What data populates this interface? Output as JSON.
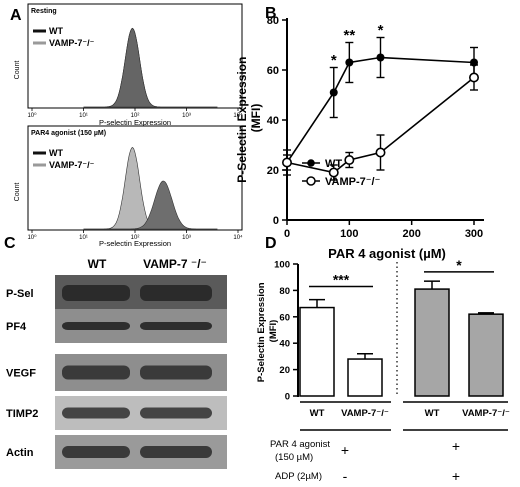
{
  "figure": {
    "panel_labels": [
      "A",
      "B",
      "C",
      "D"
    ]
  },
  "chart_data": [
    {
      "panel": "A",
      "type": "area",
      "subpanels": [
        {
          "title": "Resting",
          "ylabel": "Count",
          "xlabel": "P-selectin Expression",
          "x_tick_labels": [
            "10⁰",
            "10¹",
            "10²",
            "10³",
            "10⁴"
          ],
          "legend": [
            {
              "label": "WT",
              "color": "#111111"
            },
            {
              "label": "VAMP-7⁻/⁻",
              "color": "#9a9a9a"
            }
          ],
          "series": [
            {
              "name": "WT",
              "center_decade": 1.95,
              "width": 0.14,
              "peak": 0.82
            },
            {
              "name": "VAMP-7⁻/⁻",
              "center_decade": 1.95,
              "width": 0.14,
              "peak": 0.82
            }
          ]
        },
        {
          "title": "PAR4 agonist (150 µM)",
          "ylabel": "Count",
          "xlabel": "P-selectin Expression",
          "x_tick_labels": [
            "10⁰",
            "10¹",
            "10²",
            "10³",
            "10⁴"
          ],
          "legend": [
            {
              "label": "WT",
              "color": "#111111"
            },
            {
              "label": "VAMP-7⁻/⁻",
              "color": "#9a9a9a"
            }
          ],
          "series": [
            {
              "name": "WT",
              "center_decade": 2.55,
              "width": 0.17,
              "peak": 0.5
            },
            {
              "name": "VAMP-7⁻/⁻",
              "center_decade": 1.95,
              "width": 0.14,
              "peak": 0.85
            }
          ]
        }
      ]
    },
    {
      "panel": "B",
      "type": "line",
      "xlabel": "PAR 4 agonist (µM)",
      "ylabel": "P-Selectin Expression\n(MFI)",
      "xlim": [
        0,
        300
      ],
      "ylim": [
        0,
        80
      ],
      "x_ticks": [
        0,
        100,
        200,
        300
      ],
      "y_ticks": [
        0,
        20,
        40,
        60,
        80
      ],
      "series": [
        {
          "name": "WT",
          "marker": "filled",
          "x": [
            0,
            75,
            100,
            150,
            300
          ],
          "y": [
            23,
            51,
            63,
            65,
            63
          ],
          "err": [
            5,
            10,
            8,
            8,
            6
          ]
        },
        {
          "name": "VAMP-7⁻/⁻",
          "marker": "open",
          "x": [
            0,
            75,
            100,
            150,
            300
          ],
          "y": [
            23,
            19,
            24,
            27,
            57
          ],
          "err": [
            3,
            3,
            3,
            7,
            5
          ]
        }
      ],
      "annotations": [
        {
          "x": 75,
          "y": 62,
          "text": "*"
        },
        {
          "x": 100,
          "y": 72,
          "text": "**"
        },
        {
          "x": 150,
          "y": 74,
          "text": "*"
        }
      ],
      "legend_position": "bottom-left"
    },
    {
      "panel": "C",
      "type": "table",
      "columns": [
        "WT",
        "VAMP-7 ⁻/⁻"
      ],
      "rows": [
        "P-Sel",
        "PF4",
        "VEGF",
        "TIMP2",
        "Actin"
      ]
    },
    {
      "panel": "D",
      "type": "bar",
      "ylabel": "P-Selectin Expression\n(MFI)",
      "ylim": [
        0,
        100
      ],
      "y_ticks": [
        0,
        20,
        40,
        60,
        80,
        100
      ],
      "categories": [
        "WT",
        "VAMP-7⁻/⁻",
        "WT",
        "VAMP-7⁻/⁻"
      ],
      "values": [
        67,
        28,
        81,
        62
      ],
      "errors": [
        6,
        4,
        6,
        1
      ],
      "fills": [
        "#ffffff",
        "#ffffff",
        "#a6a6a6",
        "#a6a6a6"
      ],
      "significance": [
        {
          "from": 0,
          "to": 1,
          "y": 83,
          "text": "***"
        },
        {
          "from": 2,
          "to": 3,
          "y": 94,
          "text": "*"
        }
      ],
      "conditions": [
        {
          "label": "PAR 4 agonist",
          "label2": "(150 µM)",
          "left": "+",
          "right": "+"
        },
        {
          "label": "ADP  (2µM)",
          "left": "-",
          "right": "+"
        }
      ]
    }
  ]
}
